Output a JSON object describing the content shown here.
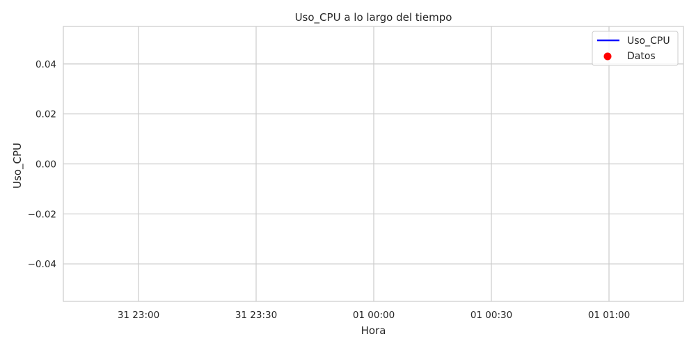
{
  "chart_data": {
    "type": "line",
    "title": "Uso_CPU a lo largo del tiempo",
    "xlabel": "Hora",
    "ylabel": "Uso_CPU",
    "x_ticks": [
      "31 23:00",
      "31 23:30",
      "01 00:00",
      "01 00:30",
      "01 01:00"
    ],
    "y_ticks": [
      "0.04",
      "0.02",
      "0.00",
      "−0.02",
      "−0.04"
    ],
    "y_tick_values": [
      0.04,
      0.02,
      0.0,
      -0.02,
      -0.04
    ],
    "ylim": [
      -0.055,
      0.055
    ],
    "grid": true,
    "legend_position": "top-right",
    "series": [
      {
        "name": "Uso_CPU",
        "kind": "line",
        "color": "#0000ff",
        "values": []
      },
      {
        "name": "Datos",
        "kind": "scatter",
        "color": "#ff0000",
        "values": []
      }
    ]
  }
}
